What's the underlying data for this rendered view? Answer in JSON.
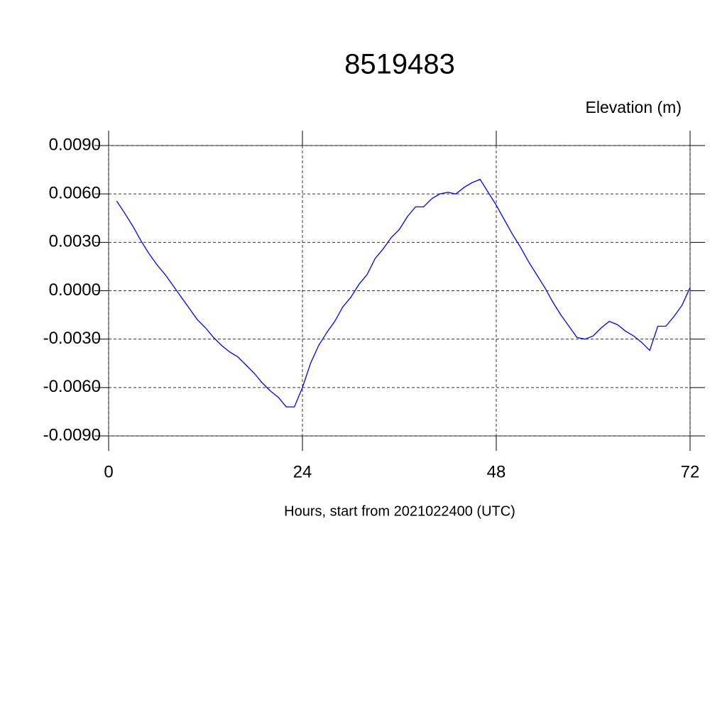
{
  "chart_data": {
    "type": "line",
    "title": "8519483",
    "ylabel": "Elevation (m)",
    "xlabel": "Hours, start from 2021022400 (UTC)",
    "x": [
      1,
      2,
      3,
      4,
      5,
      6,
      7,
      8,
      9,
      10,
      11,
      12,
      13,
      14,
      15,
      16,
      17,
      18,
      19,
      20,
      21,
      22,
      23,
      24,
      25,
      26,
      27,
      28,
      29,
      30,
      31,
      32,
      33,
      34,
      35,
      36,
      37,
      38,
      39,
      40,
      41,
      42,
      43,
      44,
      45,
      46,
      47,
      48,
      49,
      50,
      51,
      52,
      53,
      54,
      55,
      56,
      57,
      58,
      59,
      60,
      61,
      62,
      63,
      64,
      65,
      66,
      67,
      68,
      69,
      70,
      71,
      72
    ],
    "series": [
      {
        "color": "#0000ff",
        "values": [
          0.00556,
          0.0048,
          0.004,
          0.0031,
          0.0023,
          0.0016,
          0.001,
          0.0003,
          -0.0004,
          -0.0011,
          -0.0018,
          -0.0023,
          -0.0029,
          -0.0034,
          -0.0038,
          -0.0041,
          -0.0046,
          -0.0051,
          -0.0057,
          -0.0062,
          -0.0066,
          -0.0072,
          -0.0072,
          -0.006,
          -0.0045,
          -0.0034,
          -0.0026,
          -0.0019,
          -0.001,
          -0.0004,
          0.0004,
          0.001,
          0.002,
          0.0026,
          0.0033,
          0.0038,
          0.0046,
          0.0052,
          0.0052,
          0.0057,
          0.006,
          0.0061,
          0.006,
          0.0064,
          0.0067,
          0.0069,
          0.0061,
          0.0053,
          0.0044,
          0.0035,
          0.0027,
          0.0018,
          0.001,
          0.0002,
          -0.0007,
          -0.0015,
          -0.0022,
          -0.0029,
          -0.003,
          -0.0028,
          -0.0023,
          -0.0019,
          -0.0021,
          -0.0025,
          -0.0028,
          -0.0032,
          -0.0037,
          -0.0022,
          -0.0022,
          -0.0016,
          -0.0009,
          0.0002
        ]
      }
    ],
    "xlim": [
      0,
      72
    ],
    "xticks": [
      0,
      24,
      48,
      72
    ],
    "ylim": [
      -0.009,
      0.009
    ],
    "yticks": [
      {
        "value": 0.009,
        "label": "0.0090"
      },
      {
        "value": 0.006,
        "label": "0.0060"
      },
      {
        "value": 0.003,
        "label": "0.0030"
      },
      {
        "value": 0,
        "label": "0.0000"
      },
      {
        "value": -0.003,
        "label": "-0.0030"
      },
      {
        "value": -0.006,
        "label": "-0.0060"
      },
      {
        "value": -0.009,
        "label": "-0.0090"
      }
    ],
    "grid": true
  }
}
